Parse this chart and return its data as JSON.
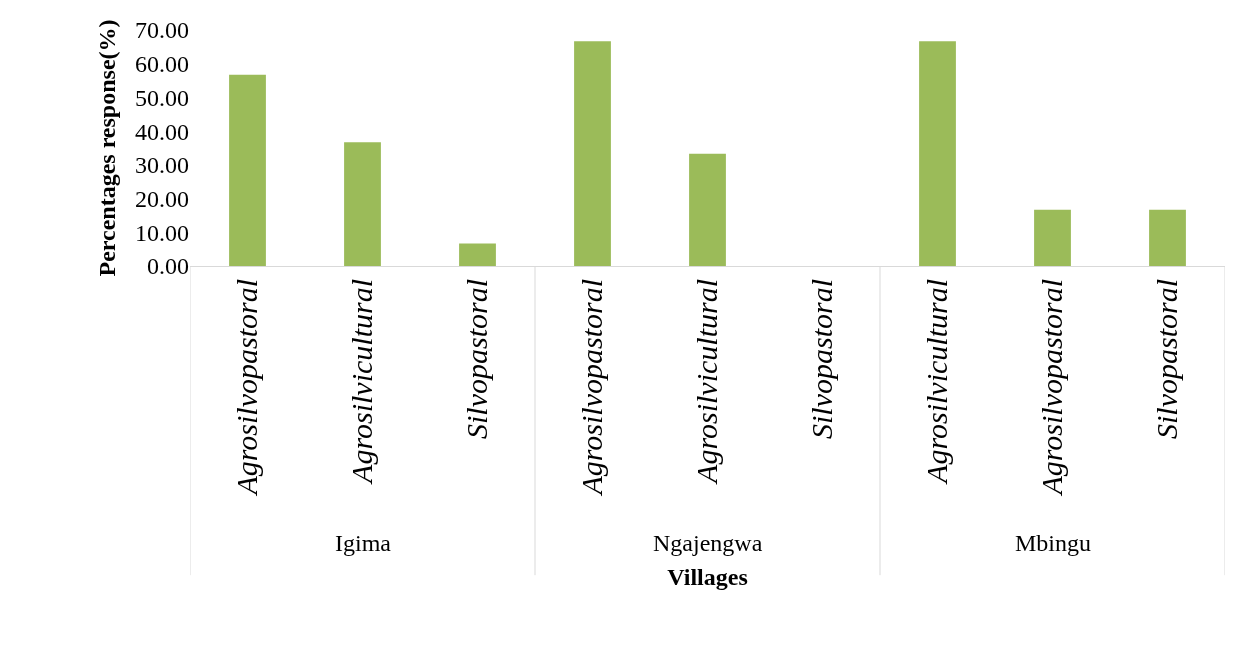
{
  "chart_data": {
    "type": "bar",
    "xlabel": "Villages",
    "ylabel": "Percentages response(%)",
    "categories": [
      "Agrosilvopastoral",
      "Agrosilvicultural",
      "Silvopastoral",
      "Agrosilvopastoral",
      "Agrosilvicultural",
      "Silvopastoral",
      "Agrosilvicultural",
      "Agrosilvopastoral",
      "Silvopastoral"
    ],
    "values": [
      56.7,
      36.7,
      6.7,
      66.7,
      33.3,
      0,
      66.7,
      16.7,
      16.7
    ],
    "color": "#9bbb59",
    "annotations": [
      "Igima",
      "Ngajengwa",
      "Mbingu"
    ],
    "ylim": [
      0,
      70
    ],
    "yticks": [
      {
        "value": 0,
        "label": "0.00"
      },
      {
        "value": 10,
        "label": "10.00"
      },
      {
        "value": 20,
        "label": "20.00"
      },
      {
        "value": 30,
        "label": "30.00"
      },
      {
        "value": 40,
        "label": "40.00"
      },
      {
        "value": 50,
        "label": "50.00"
      },
      {
        "value": 60,
        "label": "60.00"
      },
      {
        "value": 70,
        "label": "70.00"
      }
    ],
    "grid": false
  }
}
